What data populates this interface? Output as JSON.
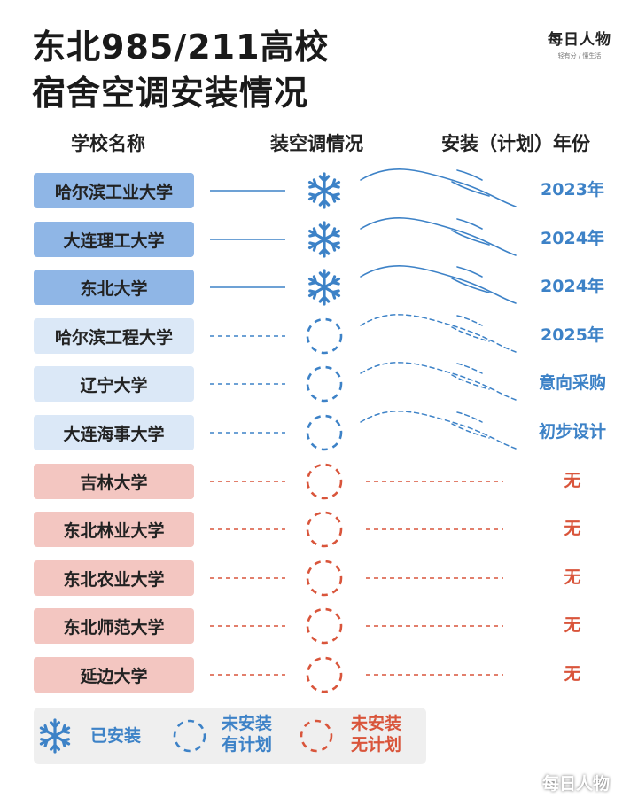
{
  "title_line1": "东北985/211高校",
  "title_line2": "宿舍空调安装情况",
  "logo": {
    "main": "每日人物",
    "sub": "轻有分 / 懂生活"
  },
  "headers": {
    "school": "学校名称",
    "status": "装空调情况",
    "year": "安装（计划）年份"
  },
  "colors": {
    "installed": "#3d82c7",
    "none": "#d9553b",
    "installed_bg": "#8fb6e6",
    "planned_bg": "#dbe8f7",
    "none_bg": "#f3c6c1"
  },
  "chart_data": {
    "type": "table",
    "columns": [
      "学校名称",
      "装空调情况",
      "安装（计划）年份"
    ],
    "rows": [
      {
        "school": "哈尔滨工业大学",
        "status": "installed",
        "year": "2023年"
      },
      {
        "school": "大连理工大学",
        "status": "installed",
        "year": "2024年"
      },
      {
        "school": "东北大学",
        "status": "installed",
        "year": "2024年"
      },
      {
        "school": "哈尔滨工程大学",
        "status": "planned",
        "year": "2025年"
      },
      {
        "school": "辽宁大学",
        "status": "planned",
        "year": "意向采购"
      },
      {
        "school": "大连海事大学",
        "status": "planned",
        "year": "初步设计"
      },
      {
        "school": "吉林大学",
        "status": "none",
        "year": "无"
      },
      {
        "school": "东北林业大学",
        "status": "none",
        "year": "无"
      },
      {
        "school": "东北农业大学",
        "status": "none",
        "year": "无"
      },
      {
        "school": "东北师范大学",
        "status": "none",
        "year": "无"
      },
      {
        "school": "延边大学",
        "status": "none",
        "year": "无"
      }
    ]
  },
  "legend": {
    "installed": "已安装",
    "planned": [
      "未安装",
      "有计划"
    ],
    "none": [
      "未安装",
      "无计划"
    ],
    "icons": [
      "snowflake-icon",
      "dashed-circle-icon"
    ]
  },
  "watermark": "每日人物"
}
